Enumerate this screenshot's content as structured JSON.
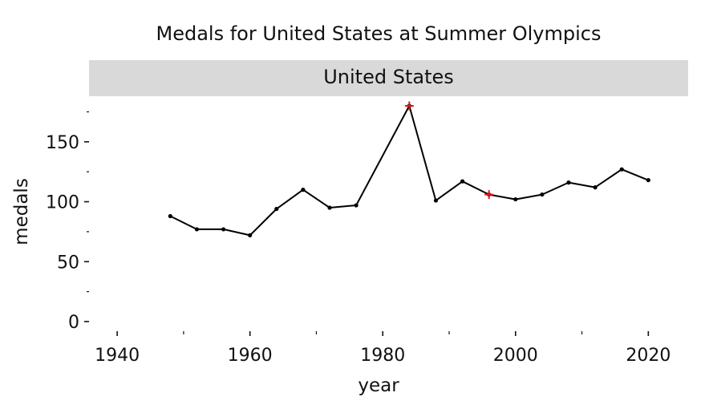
{
  "chart_data": {
    "type": "line",
    "title": "Medals for United States at Summer Olympics",
    "facet": "United States",
    "xlabel": "year",
    "ylabel": "medals",
    "xlim": [
      1936,
      2026
    ],
    "ylim": [
      0,
      180
    ],
    "x_ticks": [
      1940,
      1960,
      1980,
      2000,
      2020
    ],
    "x_minor_ticks": [
      1950,
      1970,
      1990,
      2010
    ],
    "y_ticks": [
      0,
      50,
      100,
      150
    ],
    "y_minor_ticks": [
      25,
      75,
      125,
      175
    ],
    "grid": false,
    "series": [
      {
        "x": [
          1948,
          1952,
          1956,
          1960,
          1964,
          1968,
          1972,
          1976,
          1984,
          1988,
          1992,
          1996,
          2000,
          2004,
          2008,
          2012,
          2016,
          2020
        ],
        "values": [
          88,
          77,
          77,
          72,
          94,
          110,
          95,
          97,
          180,
          101,
          117,
          106,
          102,
          106,
          116,
          112,
          127,
          118
        ],
        "color": "#000000"
      }
    ],
    "highlights": [
      {
        "x": 1984,
        "value": 180,
        "color": "#e8141d",
        "marker": "plus"
      },
      {
        "x": 1996,
        "value": 106,
        "color": "#e8141d",
        "marker": "plus"
      }
    ],
    "strip_color": "#d9d9d9"
  }
}
